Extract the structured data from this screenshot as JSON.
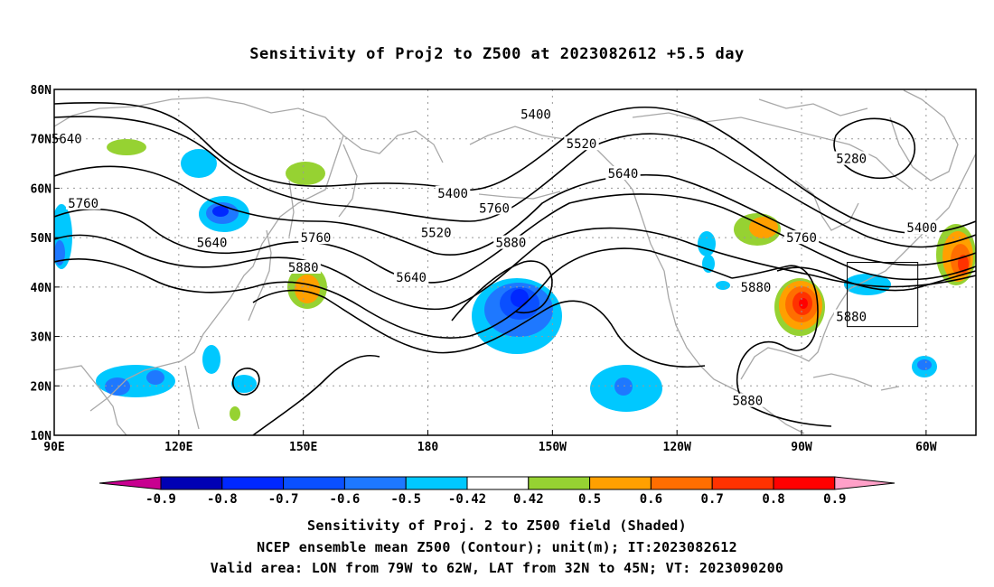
{
  "title": "Sensitivity of Proj2 to Z500 at 2023082612 +5.5 day",
  "axes": {
    "lat_labels": [
      "80N",
      "70N",
      "60N",
      "50N",
      "40N",
      "30N",
      "20N",
      "10N"
    ],
    "lat_values": [
      80,
      70,
      60,
      50,
      40,
      30,
      20,
      10
    ],
    "lon_labels": [
      "90E",
      "120E",
      "150E",
      "180",
      "150W",
      "120W",
      "90W",
      "60W"
    ],
    "lon_values": [
      90,
      120,
      150,
      180,
      210,
      240,
      270,
      300
    ],
    "lon_range": [
      90,
      312
    ],
    "lat_range": [
      10,
      80
    ]
  },
  "contour_labels": [
    {
      "text": "5400",
      "lon": 206,
      "lat": 75
    },
    {
      "text": "5520",
      "lon": 217,
      "lat": 69
    },
    {
      "text": "5640",
      "lon": 227,
      "lat": 63
    },
    {
      "text": "5280",
      "lon": 282,
      "lat": 66
    },
    {
      "text": "5400",
      "lon": 299,
      "lat": 52
    },
    {
      "text": "5400",
      "lon": 186,
      "lat": 59
    },
    {
      "text": "5520",
      "lon": 182,
      "lat": 51
    },
    {
      "text": "5640",
      "lon": 176,
      "lat": 42
    },
    {
      "text": "5760",
      "lon": 196,
      "lat": 56
    },
    {
      "text": "5880",
      "lon": 200,
      "lat": 49
    },
    {
      "text": "5760",
      "lon": 153,
      "lat": 50
    },
    {
      "text": "5880",
      "lon": 150,
      "lat": 44
    },
    {
      "text": "5640",
      "lon": 128,
      "lat": 49
    },
    {
      "text": "5760",
      "lon": 97,
      "lat": 57
    },
    {
      "text": "5640",
      "lon": 93,
      "lat": 70
    },
    {
      "text": "5760",
      "lon": 270,
      "lat": 50
    },
    {
      "text": "5880",
      "lon": 259,
      "lat": 40
    },
    {
      "text": "5880",
      "lon": 282,
      "lat": 34
    },
    {
      "text": "5880",
      "lon": 257,
      "lat": 17
    }
  ],
  "valid_area": {
    "lon_min": 281,
    "lon_max": 298,
    "lat_min": 32,
    "lat_max": 45
  },
  "colorbar": {
    "labels": [
      "-0.9",
      "-0.8",
      "-0.7",
      "-0.6",
      "-0.5",
      "-0.42",
      "0.42",
      "0.5",
      "0.6",
      "0.7",
      "0.8",
      "0.9"
    ],
    "colors": [
      "#0000b4",
      "#0028ff",
      "#0a50ff",
      "#1e78ff",
      "#00c8ff",
      "#ffffff",
      "#96d232",
      "#ffa000",
      "#ff6e00",
      "#ff3200",
      "#ff0000"
    ],
    "left_arrow": "#c80090",
    "right_arrow": "#ffa0c8"
  },
  "captions": {
    "line1": "Sensitivity of Proj. 2 to Z500 field (Shaded)",
    "line2": "NCEP ensemble mean Z500 (Contour); unit(m); IT:2023082612",
    "line3": "Valid area: LON from 79W to 62W, LAT from 32N to 45N; VT: 2023090200"
  }
}
